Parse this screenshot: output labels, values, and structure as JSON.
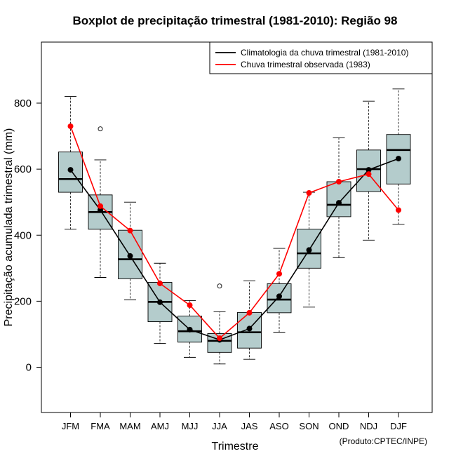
{
  "chart_data": {
    "type": "boxplot",
    "title": "Boxplot de precipitação trimestral (1981-2010): Região 98",
    "xlabel": "Trimestre",
    "ylabel": "Precipitação acumulada trimestral (mm)",
    "ylim": [
      -130,
      990
    ],
    "yticks": [
      0,
      200,
      400,
      600,
      800
    ],
    "categories": [
      "JFM",
      "FMA",
      "MAM",
      "AMJ",
      "MJJ",
      "JJA",
      "JAS",
      "ASO",
      "SON",
      "OND",
      "NDJ",
      "DJF"
    ],
    "boxes": [
      {
        "min": 418,
        "q1": 530,
        "median": 570,
        "q3": 652,
        "max": 820,
        "outliers": []
      },
      {
        "min": 272,
        "q1": 418,
        "median": 470,
        "q3": 522,
        "max": 628,
        "outliers": [
          722
        ]
      },
      {
        "min": 204,
        "q1": 268,
        "median": 327,
        "q3": 415,
        "max": 500,
        "outliers": []
      },
      {
        "min": 72,
        "q1": 138,
        "median": 198,
        "q3": 257,
        "max": 315,
        "outliers": []
      },
      {
        "min": 30,
        "q1": 76,
        "median": 109,
        "q3": 155,
        "max": 202,
        "outliers": []
      },
      {
        "min": 10,
        "q1": 45,
        "median": 80,
        "q3": 102,
        "max": 168,
        "outliers": [
          246
        ]
      },
      {
        "min": 24,
        "q1": 58,
        "median": 106,
        "q3": 166,
        "max": 262,
        "outliers": []
      },
      {
        "min": 106,
        "q1": 165,
        "median": 205,
        "q3": 253,
        "max": 360,
        "outliers": []
      },
      {
        "min": 182,
        "q1": 300,
        "median": 345,
        "q3": 418,
        "max": 530,
        "outliers": []
      },
      {
        "min": 332,
        "q1": 456,
        "median": 492,
        "q3": 562,
        "max": 695,
        "outliers": []
      },
      {
        "min": 385,
        "q1": 532,
        "median": 600,
        "q3": 658,
        "max": 806,
        "outliers": []
      },
      {
        "min": 433,
        "q1": 555,
        "median": 658,
        "q3": 705,
        "max": 843,
        "outliers": []
      }
    ],
    "series": [
      {
        "name": "Climatologia da chuva trimestral (1981-2010)",
        "color": "#000000",
        "values": [
          598,
          476,
          337,
          197,
          114,
          83,
          117,
          215,
          355,
          498,
          598,
          632
        ]
      },
      {
        "name": "Chuva trimestral observada (1983)",
        "color": "#ff0000",
        "values": [
          730,
          488,
          414,
          254,
          188,
          88,
          165,
          283,
          528,
          562,
          585,
          476
        ]
      }
    ],
    "box_fill": "#b4cccc",
    "legend_position": "top-right"
  },
  "credit": "(Produto:CPTEC/INPE)"
}
